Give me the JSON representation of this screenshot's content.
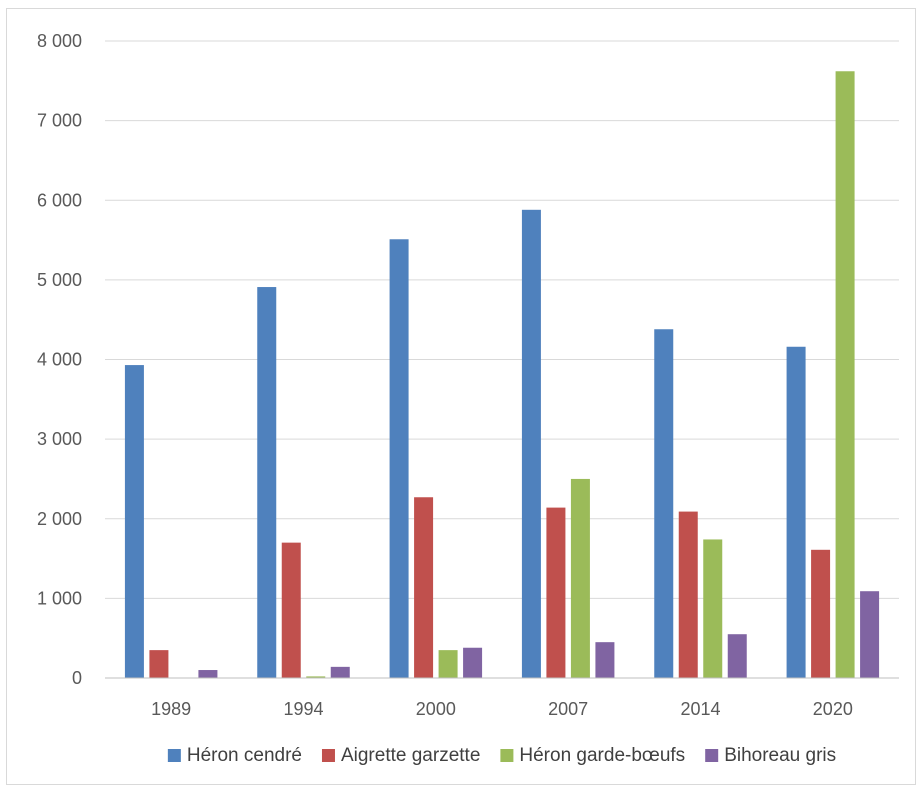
{
  "chart_data": {
    "type": "bar",
    "title": "",
    "xlabel": "",
    "ylabel": "",
    "categories": [
      "1989",
      "1994",
      "2000",
      "2007",
      "2014",
      "2020"
    ],
    "series": [
      {
        "name": "Héron cendré",
        "color": "#4f81bd",
        "values": [
          3930,
          4910,
          5510,
          5880,
          4380,
          4160
        ]
      },
      {
        "name": "Aigrette garzette",
        "color": "#c0504d",
        "values": [
          350,
          1700,
          2270,
          2140,
          2090,
          1610
        ]
      },
      {
        "name": "Héron garde-bœufs",
        "color": "#9bbb59",
        "values": [
          0,
          20,
          350,
          2500,
          1740,
          7620
        ]
      },
      {
        "name": "Bihoreau gris",
        "color": "#8064a2",
        "values": [
          100,
          140,
          380,
          450,
          550,
          1090
        ]
      }
    ],
    "ylim": [
      0,
      8000
    ],
    "yticks": [
      0,
      1000,
      2000,
      3000,
      4000,
      5000,
      6000,
      7000,
      8000
    ],
    "ytick_labels": [
      "0",
      "1 000",
      "2 000",
      "3 000",
      "4 000",
      "5 000",
      "6 000",
      "7 000",
      "8 000"
    ],
    "grid": true,
    "legend_position": "bottom"
  }
}
